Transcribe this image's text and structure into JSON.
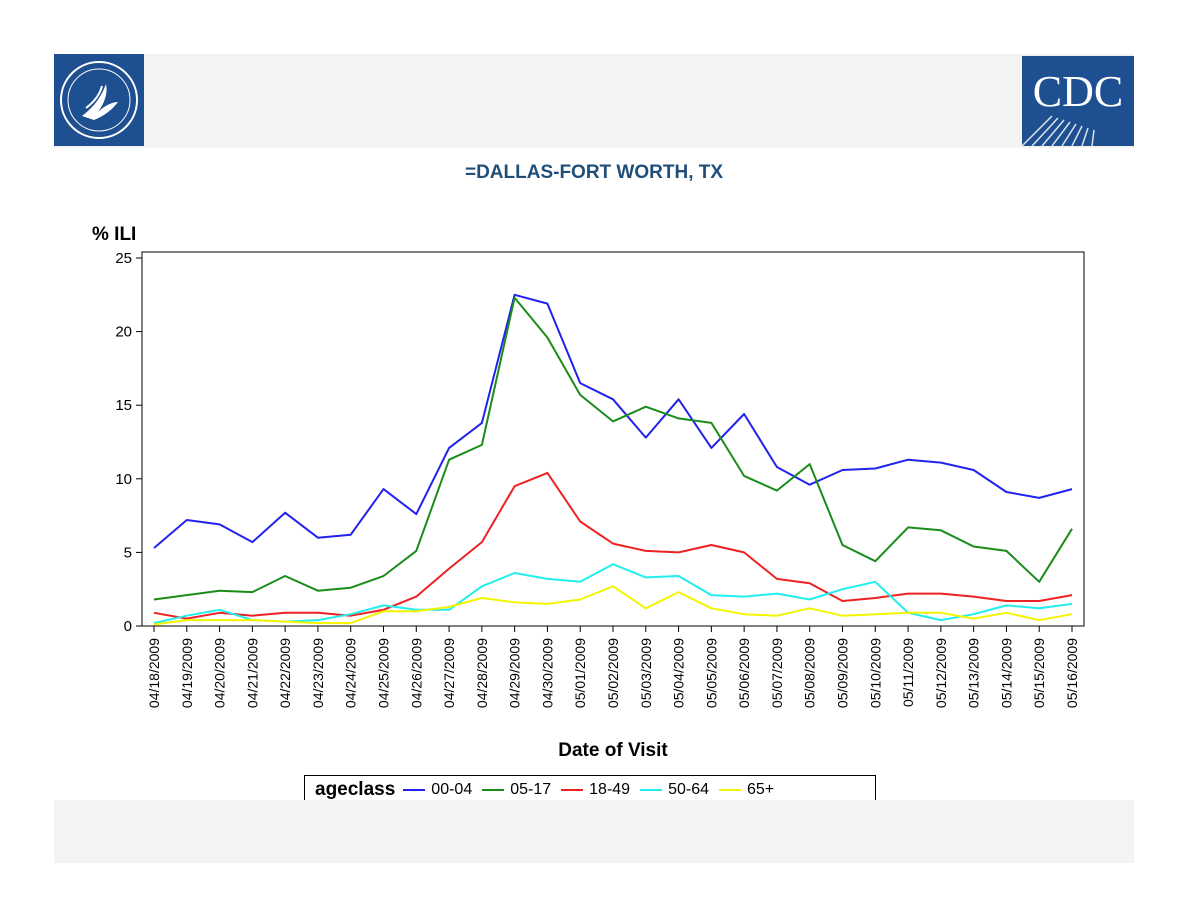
{
  "chart_data": {
    "type": "line",
    "title": "=DALLAS-FORT WORTH, TX",
    "ylabel": "% ILI",
    "xlabel": "Date of Visit",
    "ylim": [
      0,
      25
    ],
    "yticks": [
      0,
      5,
      10,
      15,
      20,
      25
    ],
    "legend_title": "ageclass",
    "legend_position": "bottom",
    "x": [
      "04/18/2009",
      "04/19/2009",
      "04/20/2009",
      "04/21/2009",
      "04/22/2009",
      "04/23/2009",
      "04/24/2009",
      "04/25/2009",
      "04/26/2009",
      "04/27/2009",
      "04/28/2009",
      "04/29/2009",
      "04/30/2009",
      "05/01/2009",
      "05/02/2009",
      "05/03/2009",
      "05/04/2009",
      "05/05/2009",
      "05/06/2009",
      "05/07/2009",
      "05/08/2009",
      "05/09/2009",
      "05/10/2009",
      "05/11/2009",
      "05/12/2009",
      "05/13/2009",
      "05/14/2009",
      "05/15/2009",
      "05/16/2009"
    ],
    "series": [
      {
        "name": "00-04",
        "color": "#2222ee",
        "values": [
          5.3,
          7.2,
          6.9,
          5.7,
          7.7,
          6.0,
          6.2,
          9.3,
          7.6,
          12.1,
          13.8,
          22.5,
          21.9,
          16.5,
          15.4,
          12.8,
          15.4,
          12.1,
          14.4,
          10.8,
          9.6,
          10.6,
          10.7,
          11.3,
          11.1,
          10.6,
          9.1,
          8.7,
          9.3
        ]
      },
      {
        "name": "05-17",
        "color": "#1a8c1a",
        "values": [
          1.8,
          2.1,
          2.4,
          2.3,
          3.4,
          2.4,
          2.6,
          3.4,
          5.1,
          11.3,
          12.3,
          22.3,
          19.6,
          15.7,
          13.9,
          14.9,
          14.1,
          13.8,
          10.2,
          9.2,
          11.0,
          5.5,
          4.4,
          6.7,
          6.5,
          5.4,
          5.1,
          3.0,
          6.6
        ]
      },
      {
        "name": "18-49",
        "color": "#ee2222",
        "values": [
          0.9,
          0.5,
          0.9,
          0.7,
          0.9,
          0.9,
          0.7,
          1.1,
          2.0,
          3.9,
          5.7,
          9.5,
          10.4,
          7.1,
          5.6,
          5.1,
          5.0,
          5.5,
          5.0,
          3.2,
          2.9,
          1.7,
          1.9,
          2.2,
          2.2,
          2.0,
          1.7,
          1.7,
          2.1
        ]
      },
      {
        "name": "50-64",
        "color": "#22eeee",
        "values": [
          0.2,
          0.7,
          1.1,
          0.4,
          0.3,
          0.4,
          0.8,
          1.4,
          1.1,
          1.1,
          2.7,
          3.6,
          3.2,
          3.0,
          4.2,
          3.3,
          3.4,
          2.1,
          2.0,
          2.2,
          1.8,
          2.5,
          3.0,
          0.9,
          0.4,
          0.8,
          1.4,
          1.2,
          1.5
        ]
      },
      {
        "name": "65+",
        "color": "#f4f400",
        "values": [
          0.1,
          0.4,
          0.4,
          0.4,
          0.3,
          0.2,
          0.2,
          1.0,
          1.0,
          1.3,
          1.9,
          1.6,
          1.5,
          1.8,
          2.7,
          1.2,
          2.3,
          1.2,
          0.8,
          0.7,
          1.2,
          0.7,
          0.8,
          0.9,
          0.9,
          0.5,
          0.9,
          0.4,
          0.8
        ]
      }
    ]
  }
}
